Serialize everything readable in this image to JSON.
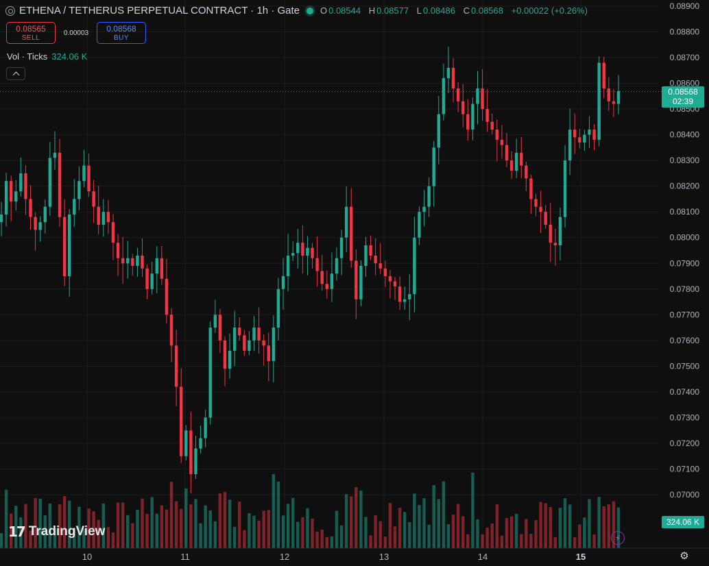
{
  "header": {
    "title": "ETHENA / TETHERUS PERPETUAL CONTRACT · 1h · Gate",
    "ohlc": [
      {
        "k": "O",
        "v": "0.08544"
      },
      {
        "k": "H",
        "v": "0.08577"
      },
      {
        "k": "L",
        "v": "0.08486"
      },
      {
        "k": "C",
        "v": "0.08568"
      },
      {
        "k": "",
        "v": "+0.00022 (+0.26%)"
      }
    ]
  },
  "trade": {
    "sell_price": "0.08565",
    "sell_label": "SELL",
    "spread": "0.00003",
    "buy_price": "0.08568",
    "buy_label": "BUY"
  },
  "volume_legend": {
    "label": "Vol · Ticks",
    "value": "324.06 K"
  },
  "price_tag": {
    "price": "0.08568",
    "countdown": "02:39"
  },
  "volume_tag": "324.06 K",
  "branding": {
    "logo_mark": "17",
    "wordmark": "TradingView"
  },
  "colors": {
    "up": "#22ab94",
    "down": "#f23645",
    "background": "#0f0f0f",
    "grid": "#1e1e1e",
    "axis_text": "#b2b5be"
  },
  "icons": {
    "symbol": "symbol-icon",
    "collapse": "chevron-up-icon",
    "bolt": "lightning-icon",
    "settings": "gear-icon"
  },
  "chart_data": {
    "type": "candlestick",
    "interval": "1h",
    "y_ticks": [
      "0.08900",
      "0.08800",
      "0.08700",
      "0.08600",
      "0.08500",
      "0.08400",
      "0.08300",
      "0.08200",
      "0.08100",
      "0.08000",
      "0.07900",
      "0.07800",
      "0.07700",
      "0.07600",
      "0.07500",
      "0.07400",
      "0.07300",
      "0.07200",
      "0.07100",
      "0.07000"
    ],
    "ylim": [
      0.0695,
      0.0892
    ],
    "x_ticks": [
      "10",
      "11",
      "12",
      "13",
      "14",
      "15"
    ],
    "last_price": 0.08568,
    "ohlc_points": [
      0.0809,
      0.0822,
      0.0814,
      0.0818,
      0.0825,
      0.0815,
      0.0808,
      0.0803,
      0.0806,
      0.0812,
      0.0831,
      0.0833,
      0.0808,
      0.0785,
      0.0809,
      0.0815,
      0.0822,
      0.0828,
      0.0818,
      0.0812,
      0.0805,
      0.081,
      0.0806,
      0.0798,
      0.0792,
      0.079,
      0.0792,
      0.0789,
      0.0793,
      0.0788,
      0.078,
      0.0786,
      0.0792,
      0.0784,
      0.077,
      0.0758,
      0.0742,
      0.0715,
      0.0725,
      0.0708,
      0.0718,
      0.0722,
      0.073,
      0.0765,
      0.077,
      0.076,
      0.0749,
      0.0756,
      0.0765,
      0.0762,
      0.0756,
      0.076,
      0.0765,
      0.076,
      0.0758,
      0.0752,
      0.0765,
      0.078,
      0.0785,
      0.0793,
      0.0794,
      0.0798,
      0.0793,
      0.0796,
      0.0792,
      0.0787,
      0.0782,
      0.078,
      0.0786,
      0.0792,
      0.08,
      0.0812,
      0.0791,
      0.0776,
      0.0789,
      0.0797,
      0.0793,
      0.079,
      0.0788,
      0.0785,
      0.0783,
      0.0781,
      0.0775,
      0.0776,
      0.0778,
      0.08,
      0.081,
      0.0812,
      0.082,
      0.0835,
      0.0848,
      0.0862,
      0.0866,
      0.0858,
      0.0853,
      0.0848,
      0.0842,
      0.0852,
      0.0858,
      0.085,
      0.0845,
      0.0842,
      0.0838,
      0.0836,
      0.083,
      0.0826,
      0.0833,
      0.0828,
      0.0823,
      0.0815,
      0.0812,
      0.081,
      0.0805,
      0.0798,
      0.0797,
      0.0808,
      0.083,
      0.0842,
      0.0839,
      0.0837,
      0.084,
      0.0842,
      0.0838,
      0.0868,
      0.0858,
      0.0853,
      0.0852,
      0.0857
    ]
  }
}
